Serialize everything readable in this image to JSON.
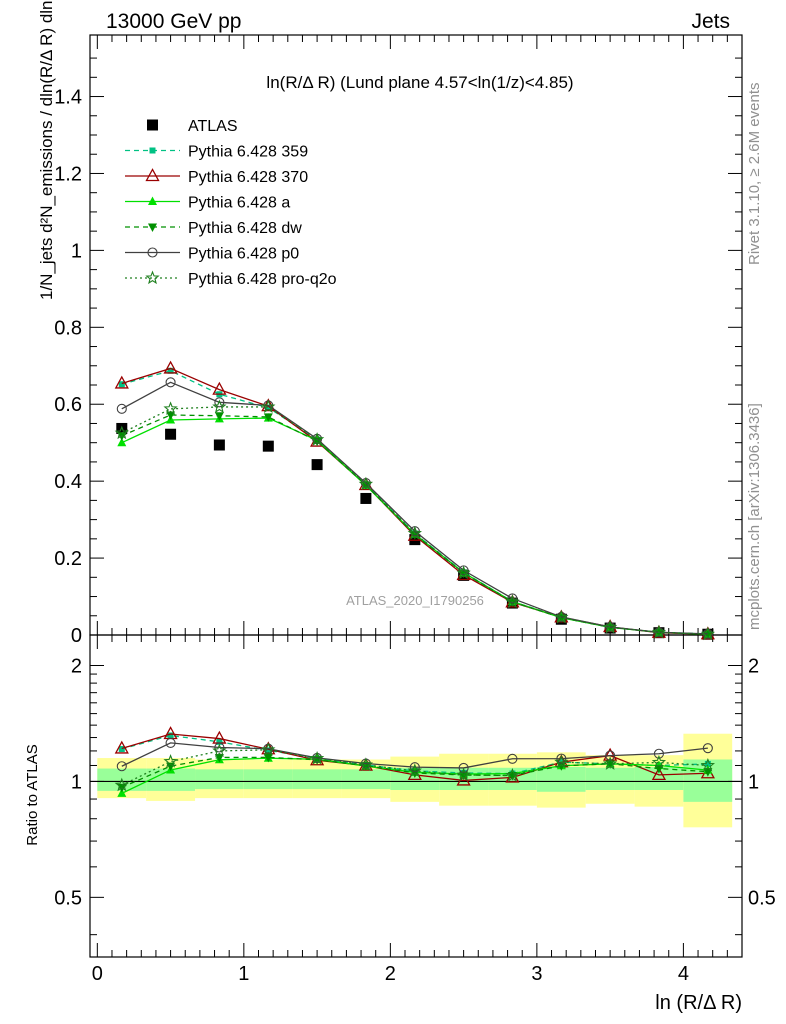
{
  "header": {
    "left": "13000 GeV pp",
    "right": "Jets"
  },
  "side_labels": {
    "rivet": "Rivet 3.1.10, ≥ 2.6M events",
    "mcplots": "mcplots.cern.ch [arXiv:1306.3436]"
  },
  "watermark": "ATLAS_2020_I1790256",
  "chart_data": [
    {
      "type": "scatter",
      "title": "ln(R/Δ R) (Lund plane 4.57<ln(1/z)<4.85)",
      "ylabel": "1/N_jets d²N_emissions / dln(R/Δ R) dln(1/z)",
      "xlim": [
        -0.05,
        4.4
      ],
      "ylim": [
        0,
        1.56
      ],
      "yticks": [
        0,
        0.2,
        0.4,
        0.6,
        0.8,
        1,
        1.2,
        1.4
      ],
      "ytick_labels": [
        "0",
        "0.2",
        "0.4",
        "0.6",
        "0.8",
        "1",
        "1.2",
        "1.4"
      ],
      "x": [
        0.167,
        0.5,
        0.833,
        1.167,
        1.5,
        1.833,
        2.167,
        2.5,
        2.833,
        3.167,
        3.5,
        3.833,
        4.167
      ],
      "series": [
        {
          "name": "ATLAS",
          "color": "#000000",
          "marker": "square-filled",
          "line": "none",
          "values": [
            0.537,
            0.522,
            0.494,
            0.491,
            0.443,
            0.355,
            0.248,
            0.155,
            0.083,
            0.041,
            0.018,
            0.006,
            0.002
          ]
        },
        {
          "name": "Pythia 6.428 359",
          "color": "#00c183",
          "marker": "square-small",
          "line": "dashed",
          "values": [
            0.652,
            0.687,
            0.626,
            0.591,
            0.508,
            0.392,
            0.264,
            0.163,
            0.087,
            0.046,
            0.02,
            0.007,
            0.003
          ]
        },
        {
          "name": "Pythia 6.428 370",
          "color": "#9a0000",
          "marker": "triangle-open",
          "line": "solid",
          "values": [
            0.654,
            0.693,
            0.638,
            0.595,
            0.503,
            0.39,
            0.258,
            0.156,
            0.085,
            0.046,
            0.021,
            0.006,
            0.002
          ]
        },
        {
          "name": "Pythia 6.428 a",
          "color": "#00e000",
          "marker": "triangle-filled",
          "line": "solid",
          "values": [
            0.5,
            0.559,
            0.562,
            0.564,
            0.506,
            0.389,
            0.262,
            0.162,
            0.087,
            0.045,
            0.02,
            0.007,
            0.002
          ]
        },
        {
          "name": "Pythia 6.428 dw",
          "color": "#009000",
          "marker": "triangle-down-filled",
          "line": "dashed",
          "values": [
            0.518,
            0.572,
            0.57,
            0.567,
            0.504,
            0.39,
            0.261,
            0.161,
            0.086,
            0.045,
            0.02,
            0.007,
            0.002
          ]
        },
        {
          "name": "Pythia 6.428 p0",
          "color": "#404040",
          "marker": "circle-open",
          "line": "solid",
          "values": [
            0.588,
            0.657,
            0.605,
            0.597,
            0.51,
            0.395,
            0.27,
            0.168,
            0.095,
            0.047,
            0.021,
            0.007,
            0.003
          ]
        },
        {
          "name": "Pythia 6.428 pro-q2o",
          "color": "#208020",
          "marker": "star-open",
          "line": "dotted",
          "values": [
            0.525,
            0.588,
            0.593,
            0.593,
            0.508,
            0.392,
            0.264,
            0.161,
            0.086,
            0.046,
            0.02,
            0.007,
            0.002
          ]
        }
      ]
    },
    {
      "type": "scatter",
      "ylabel": "Ratio to ATLAS",
      "xlabel": "ln (R/Δ R)",
      "xlim": [
        -0.05,
        4.4
      ],
      "ylim": [
        0.35,
        2.4
      ],
      "log_y": true,
      "yticks": [
        0.5,
        1,
        2
      ],
      "ytick_labels": [
        "0.5",
        "1",
        "2"
      ],
      "xticks": [
        0,
        1,
        2,
        3,
        4
      ],
      "xtick_labels": [
        "0",
        "1",
        "2",
        "3",
        "4"
      ],
      "band_edges": [
        0,
        0.333,
        0.667,
        1,
        1.333,
        1.667,
        2,
        2.333,
        2.667,
        3,
        3.333,
        3.667,
        4,
        4.333
      ],
      "band_inner": [
        [
          0.945,
          1.08
        ],
        [
          0.945,
          1.08
        ],
        [
          0.955,
          1.075
        ],
        [
          0.955,
          1.075
        ],
        [
          0.955,
          1.075
        ],
        [
          0.955,
          1.075
        ],
        [
          0.95,
          1.085
        ],
        [
          0.95,
          1.085
        ],
        [
          0.95,
          1.085
        ],
        [
          0.94,
          1.09
        ],
        [
          0.95,
          1.085
        ],
        [
          0.95,
          1.09
        ],
        [
          0.885,
          1.14
        ]
      ],
      "band_outer": [
        [
          0.905,
          1.15
        ],
        [
          0.89,
          1.15
        ],
        [
          0.905,
          1.14
        ],
        [
          0.905,
          1.14
        ],
        [
          0.905,
          1.14
        ],
        [
          0.905,
          1.14
        ],
        [
          0.885,
          1.16
        ],
        [
          0.865,
          1.18
        ],
        [
          0.865,
          1.18
        ],
        [
          0.855,
          1.19
        ],
        [
          0.875,
          1.17
        ],
        [
          0.86,
          1.17
        ],
        [
          0.76,
          1.33
        ]
      ],
      "series": [
        {
          "name": "Pythia 6.428 359",
          "values": [
            1.214,
            1.316,
            1.267,
            1.204,
            1.147,
            1.104,
            1.065,
            1.052,
            1.048,
            1.122,
            1.111,
            1.1,
            1.11
          ]
        },
        {
          "name": "Pythia 6.428 370",
          "values": [
            1.218,
            1.328,
            1.292,
            1.212,
            1.135,
            1.099,
            1.04,
            1.006,
            1.024,
            1.122,
            1.167,
            1.04,
            1.05
          ]
        },
        {
          "name": "Pythia 6.428 a",
          "values": [
            0.931,
            1.071,
            1.138,
            1.149,
            1.142,
            1.096,
            1.056,
            1.045,
            1.048,
            1.098,
            1.111,
            1.1,
            1.07
          ]
        },
        {
          "name": "Pythia 6.428 dw",
          "values": [
            0.965,
            1.096,
            1.154,
            1.155,
            1.138,
            1.099,
            1.052,
            1.039,
            1.036,
            1.098,
            1.111,
            1.08,
            1.06
          ]
        },
        {
          "name": "Pythia 6.428 p0",
          "values": [
            1.095,
            1.259,
            1.225,
            1.216,
            1.151,
            1.113,
            1.089,
            1.084,
            1.145,
            1.146,
            1.167,
            1.18,
            1.22
          ]
        },
        {
          "name": "Pythia 6.428 pro-q2o",
          "values": [
            0.978,
            1.126,
            1.2,
            1.208,
            1.147,
            1.104,
            1.065,
            1.039,
            1.036,
            1.122,
            1.111,
            1.12,
            1.1
          ]
        }
      ]
    }
  ]
}
